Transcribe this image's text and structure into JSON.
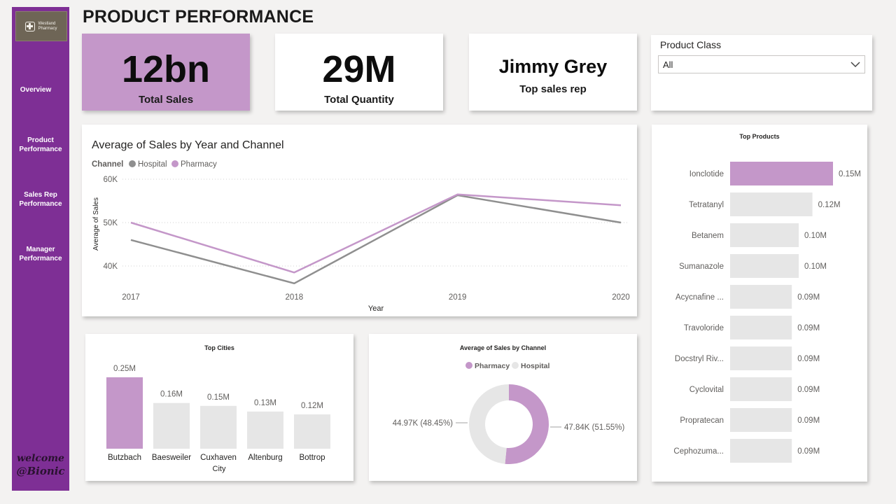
{
  "sidebar": {
    "logo_text": [
      "Westland",
      "Pharmacy"
    ],
    "nav": [
      {
        "label": "Overview"
      },
      {
        "label": "Product\nPerformance"
      },
      {
        "label": "Sales Rep\nPerformance"
      },
      {
        "label": "Manager\nPerformance"
      }
    ],
    "welcome_line1": "welcome",
    "welcome_line2": "@Bionic"
  },
  "page_title": "PRODUCT PERFORMANCE",
  "kpis": {
    "total_sales": {
      "value": "12bn",
      "label": "Total Sales"
    },
    "total_quantity": {
      "value": "29M",
      "label": "Total Quantity"
    },
    "top_rep": {
      "value": "Jimmy Grey",
      "label": "Top sales rep"
    }
  },
  "slicer": {
    "label": "Product Class",
    "selected": "All"
  },
  "colors": {
    "accent": "#c497c9",
    "grey": "#8f8f8f",
    "bar_grey": "#e6e6e6",
    "sidebar": "#7e2f95"
  },
  "chart_data": [
    {
      "type": "line",
      "title": "Average of Sales by Year and Channel",
      "xlabel": "Year",
      "ylabel": "Average of Sales",
      "legend_title": "Channel",
      "x": [
        "2017",
        "2018",
        "2019",
        "2020"
      ],
      "series": [
        {
          "name": "Hospital",
          "values": [
            46000,
            36000,
            56300,
            50000
          ]
        },
        {
          "name": "Pharmacy",
          "values": [
            50000,
            38500,
            56500,
            54000
          ]
        }
      ],
      "ylim": [
        35000,
        60000
      ],
      "yticks": [
        "40K",
        "50K",
        "60K"
      ],
      "grid": true,
      "legend_position": "top-left"
    },
    {
      "type": "bar",
      "title": "Top Cities",
      "xlabel": "City",
      "categories": [
        "Butzbach",
        "Baesweiler",
        "Cuxhaven",
        "Altenburg",
        "Bottrop"
      ],
      "values": [
        0.25,
        0.16,
        0.15,
        0.13,
        0.12
      ],
      "labels": [
        "0.25M",
        "0.16M",
        "0.15M",
        "0.13M",
        "0.12M"
      ],
      "ylim": [
        0,
        0.25
      ]
    },
    {
      "type": "pie",
      "title": "Average of Sales by Channel",
      "categories": [
        "Pharmacy",
        "Hospital"
      ],
      "values": [
        47840,
        44970
      ],
      "labels": [
        "47.84K (51.55%)",
        "44.97K (48.45%)"
      ],
      "donut": true,
      "legend_position": "top"
    },
    {
      "type": "bar",
      "orientation": "horizontal",
      "title": "Top Products",
      "categories": [
        "Ionclotide",
        "Tetratanyl",
        "Betanem",
        "Sumanazole",
        "Acycnafine ...",
        "Travoloride",
        "Docstryl Riv...",
        "Cyclovital",
        "Propratecan",
        "Cephozuma..."
      ],
      "values": [
        0.15,
        0.12,
        0.1,
        0.1,
        0.09,
        0.09,
        0.09,
        0.09,
        0.09,
        0.09
      ],
      "labels": [
        "0.15M",
        "0.12M",
        "0.10M",
        "0.10M",
        "0.09M",
        "0.09M",
        "0.09M",
        "0.09M",
        "0.09M",
        "0.09M"
      ],
      "xlim": [
        0,
        0.15
      ]
    }
  ]
}
